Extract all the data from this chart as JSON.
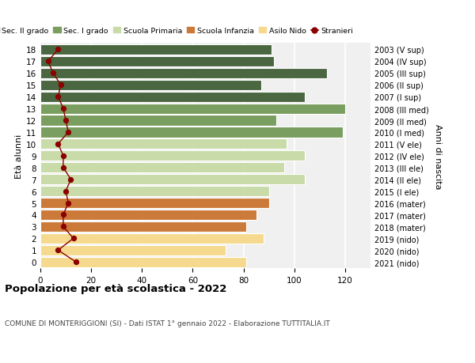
{
  "ages": [
    18,
    17,
    16,
    15,
    14,
    13,
    12,
    11,
    10,
    9,
    8,
    7,
    6,
    5,
    4,
    3,
    2,
    1,
    0
  ],
  "bar_values": [
    91,
    92,
    113,
    87,
    104,
    120,
    93,
    119,
    97,
    104,
    96,
    104,
    90,
    90,
    85,
    81,
    88,
    73,
    81
  ],
  "right_labels": [
    "2003 (V sup)",
    "2004 (IV sup)",
    "2005 (III sup)",
    "2006 (II sup)",
    "2007 (I sup)",
    "2008 (III med)",
    "2009 (II med)",
    "2010 (I med)",
    "2011 (V ele)",
    "2012 (IV ele)",
    "2013 (III ele)",
    "2014 (II ele)",
    "2015 (I ele)",
    "2016 (mater)",
    "2017 (mater)",
    "2018 (mater)",
    "2019 (nido)",
    "2020 (nido)",
    "2021 (nido)"
  ],
  "stranieri_values": [
    7,
    3,
    5,
    8,
    7,
    9,
    10,
    11,
    7,
    9,
    9,
    12,
    10,
    11,
    9,
    9,
    13,
    7,
    14
  ],
  "bar_colors": [
    "#4a6741",
    "#4a6741",
    "#4a6741",
    "#4a6741",
    "#4a6741",
    "#7a9e5f",
    "#7a9e5f",
    "#7a9e5f",
    "#c8dba8",
    "#c8dba8",
    "#c8dba8",
    "#c8dba8",
    "#c8dba8",
    "#cc7a3a",
    "#cc7a3a",
    "#cc7a3a",
    "#f5d98e",
    "#f5d98e",
    "#f5d98e"
  ],
  "legend_labels": [
    "Sec. II grado",
    "Sec. I grado",
    "Scuola Primaria",
    "Scuola Infanzia",
    "Asilo Nido",
    "Stranieri"
  ],
  "legend_colors": [
    "#4a6741",
    "#7a9e5f",
    "#c8dba8",
    "#cc7a3a",
    "#f5d98e",
    "#8b0000"
  ],
  "title": "Popolazione per età scolastica - 2022",
  "subtitle": "COMUNE DI MONTERIGGIONI (SI) - Dati ISTAT 1° gennaio 2022 - Elaborazione TUTTITALIA.IT",
  "ylabel_left": "Età alunni",
  "ylabel_right": "Anni di nascita",
  "xlim": [
    0,
    130
  ],
  "stranieri_color": "#8b0000",
  "background_color": "#ffffff",
  "plot_bg": "#f0f0f0"
}
